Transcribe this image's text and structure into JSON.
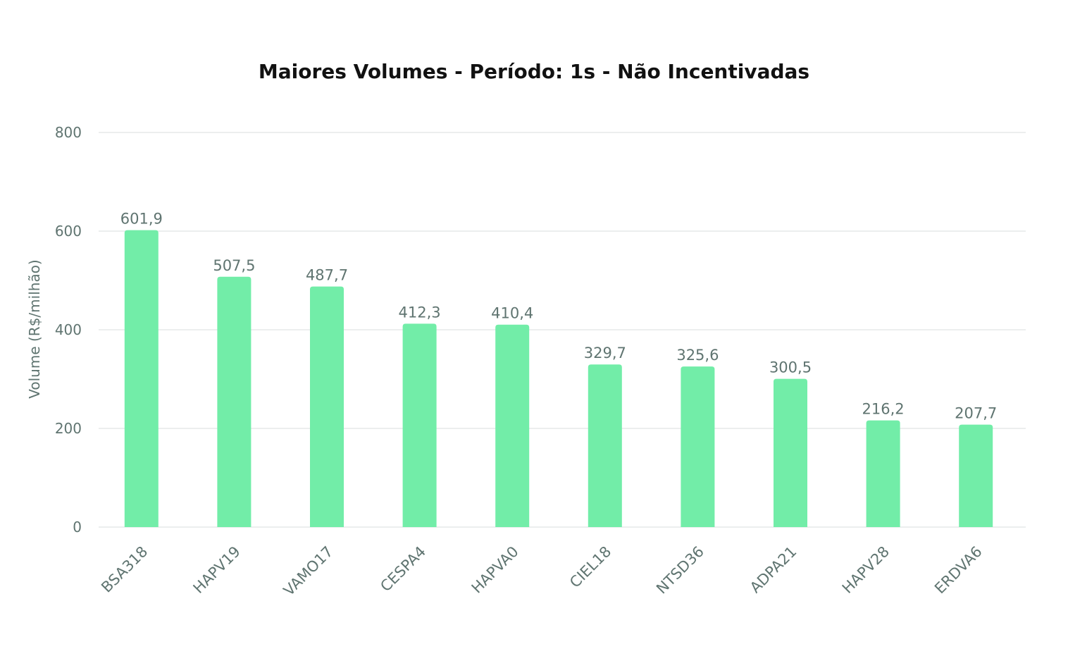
{
  "chart_data": {
    "type": "bar",
    "title": "Maiores Volumes - Período: 1s - Não Incentivadas",
    "xlabel": "",
    "ylabel": "Volume (R$/milhão)",
    "ylim": [
      0,
      800
    ],
    "yticks": [
      0,
      200,
      400,
      600,
      800
    ],
    "ytick_labels": [
      "0",
      "200",
      "400",
      "600",
      "800"
    ],
    "grid": true,
    "legend": "none",
    "categories": [
      "BSA318",
      "HAPV19",
      "VAMO17",
      "CESPA4",
      "HAPVA0",
      "CIEL18",
      "NTSD36",
      "ADPA21",
      "HAPV28",
      "ERDVA6"
    ],
    "values": [
      601.9,
      507.5,
      487.7,
      412.3,
      410.4,
      329.7,
      325.6,
      300.5,
      216.2,
      207.7
    ],
    "data_labels": [
      "601,9",
      "507,5",
      "487,7",
      "412,3",
      "410,4",
      "329,7",
      "325,6",
      "300,5",
      "216,2",
      "207,7"
    ],
    "bar_color": "#72eda8",
    "text_color": "#5f7470",
    "grid_color": "#e6e9e8",
    "title_color": "#111111"
  }
}
